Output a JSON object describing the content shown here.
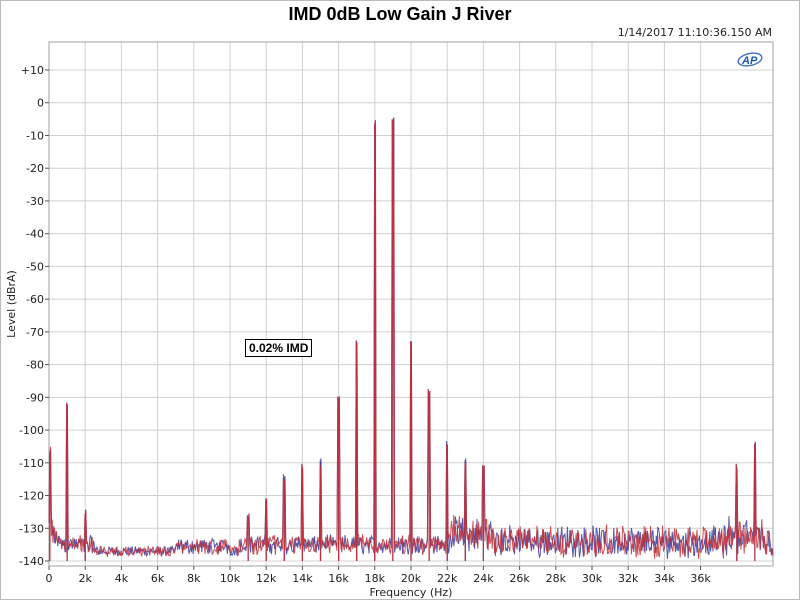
{
  "chart_data": {
    "type": "line",
    "title": "IMD 0dB Low Gain J River",
    "timestamp": "1/14/2017 11:10:36.150 AM",
    "xlabel": "Frequency (Hz)",
    "ylabel": "Level (dBrA)",
    "xlim": [
      0,
      40000
    ],
    "ylim": [
      -140,
      15
    ],
    "x_ticks": [
      {
        "value": 0,
        "label": "0"
      },
      {
        "value": 2000,
        "label": "2k"
      },
      {
        "value": 4000,
        "label": "4k"
      },
      {
        "value": 6000,
        "label": "6k"
      },
      {
        "value": 8000,
        "label": "8k"
      },
      {
        "value": 10000,
        "label": "10k"
      },
      {
        "value": 12000,
        "label": "12k"
      },
      {
        "value": 14000,
        "label": "14k"
      },
      {
        "value": 16000,
        "label": "16k"
      },
      {
        "value": 18000,
        "label": "18k"
      },
      {
        "value": 20000,
        "label": "20k"
      },
      {
        "value": 22000,
        "label": "22k"
      },
      {
        "value": 24000,
        "label": "24k"
      },
      {
        "value": 26000,
        "label": "26k"
      },
      {
        "value": 28000,
        "label": "28k"
      },
      {
        "value": 30000,
        "label": "30k"
      },
      {
        "value": 32000,
        "label": "32k"
      },
      {
        "value": 34000,
        "label": "34k"
      },
      {
        "value": 36000,
        "label": "36k"
      }
    ],
    "y_ticks": [
      {
        "value": 10,
        "label": "+10"
      },
      {
        "value": 0,
        "label": "0"
      },
      {
        "value": -10,
        "label": "-10"
      },
      {
        "value": -20,
        "label": "-20"
      },
      {
        "value": -30,
        "label": "-30"
      },
      {
        "value": -40,
        "label": "-40"
      },
      {
        "value": -50,
        "label": "-50"
      },
      {
        "value": -60,
        "label": "-60"
      },
      {
        "value": -70,
        "label": "-70"
      },
      {
        "value": -80,
        "label": "-80"
      },
      {
        "value": -90,
        "label": "-90"
      },
      {
        "value": -100,
        "label": "-100"
      },
      {
        "value": -110,
        "label": "-110"
      },
      {
        "value": -120,
        "label": "-120"
      },
      {
        "value": -130,
        "label": "-130"
      },
      {
        "value": -140,
        "label": "-140"
      }
    ],
    "grid": true,
    "annotation": "0.02% IMD",
    "noise_floor_db": -137,
    "series": [
      {
        "color": "#3a3a9a",
        "peaks": [
          [
            50,
            -108
          ],
          [
            1000,
            -93
          ],
          [
            2000,
            -126
          ],
          [
            18000,
            -7
          ],
          [
            19000,
            -7
          ],
          [
            17000,
            -74
          ],
          [
            20000,
            -74
          ],
          [
            16000,
            -92
          ],
          [
            21000,
            -90
          ],
          [
            15000,
            -110
          ],
          [
            22000,
            -105
          ],
          [
            14000,
            -112
          ],
          [
            23000,
            -110
          ],
          [
            13000,
            -116
          ],
          [
            24000,
            -113
          ],
          [
            12000,
            -122
          ],
          [
            11000,
            -128
          ],
          [
            38000,
            -112
          ],
          [
            39000,
            -105
          ]
        ]
      },
      {
        "color": "#c0303a",
        "peaks": [
          [
            50,
            -107
          ],
          [
            1000,
            -93
          ],
          [
            2000,
            -126
          ],
          [
            18000,
            -7
          ],
          [
            19000,
            -7
          ],
          [
            17000,
            -74
          ],
          [
            20000,
            -74
          ],
          [
            16000,
            -92
          ],
          [
            21000,
            -90
          ],
          [
            15000,
            -112
          ],
          [
            22000,
            -106
          ],
          [
            14000,
            -112
          ],
          [
            23000,
            -111
          ],
          [
            13000,
            -117
          ],
          [
            24000,
            -113
          ],
          [
            12000,
            -122
          ],
          [
            11000,
            -128
          ],
          [
            38000,
            -112
          ],
          [
            39000,
            -105
          ]
        ]
      }
    ],
    "colors": {
      "grid": "#d0d0d0",
      "plot_border": "#a0a0a0"
    }
  }
}
